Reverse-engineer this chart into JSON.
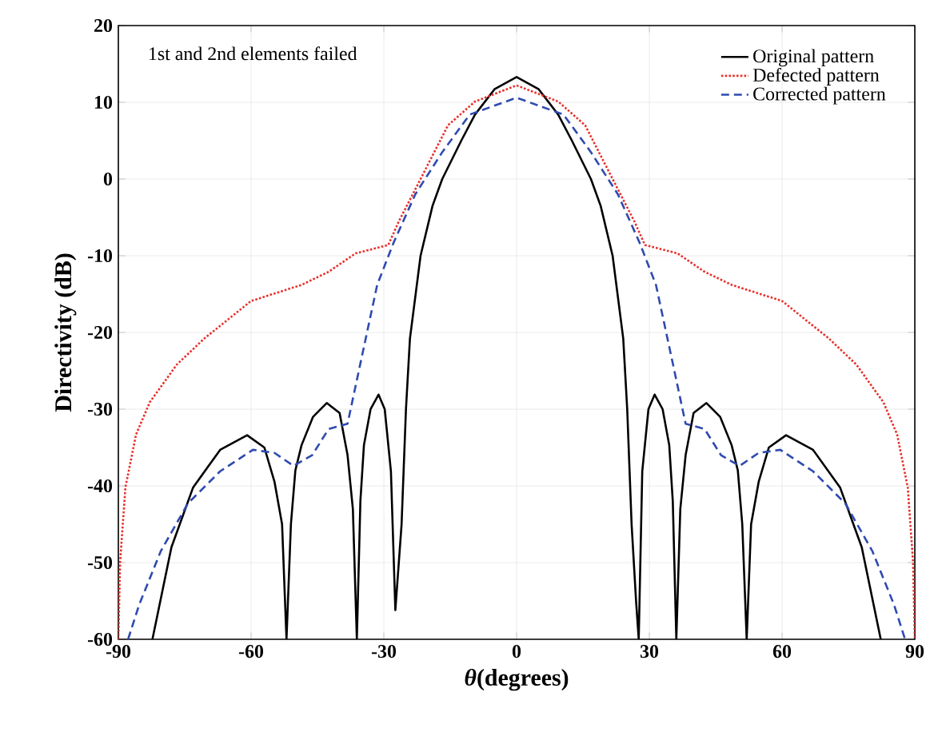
{
  "chart_data": {
    "type": "line",
    "xlabel": "*θ*(degrees)",
    "ylabel": "Directivity (dB)",
    "annotations": [
      "1st and 2nd elements failed"
    ],
    "xlim": [
      -90,
      90
    ],
    "xticks": [
      -90,
      -60,
      -30,
      0,
      30,
      60,
      90
    ],
    "ylim": [
      -60,
      20
    ],
    "yticks": [
      -60,
      -50,
      -40,
      -30,
      -20,
      -10,
      0,
      10,
      20
    ],
    "grid": true,
    "legend": "top right",
    "marker": "none",
    "series": [
      {
        "name": "Original pattern",
        "color": "#000000",
        "line_style": "solid",
        "x": [
          -82.3,
          -78,
          -73.1,
          -67,
          -60.9,
          -57,
          -54.7,
          -53,
          -52,
          -51,
          -50,
          -48.6,
          -46,
          -42.9,
          -40,
          -38.2,
          -37,
          -36.1,
          -35.3,
          -34.5,
          -33,
          -31.2,
          -29.8,
          -28.4,
          -27.4,
          -26.0,
          -25,
          -24.1,
          -21.7,
          -19,
          -16.8,
          -12.5,
          -9.4,
          -5,
          0,
          5,
          9.4,
          12.5,
          16.8,
          19,
          21.7,
          24.1,
          25,
          26.0,
          27,
          27.6,
          28.4,
          29.8,
          31.2,
          33,
          34.5,
          35.3,
          36.1,
          37,
          38.2,
          40,
          42.9,
          46,
          48.6,
          50,
          51,
          52,
          53,
          54.7,
          57,
          60.9,
          67,
          73.1,
          78,
          82.3
        ],
        "values": [
          -60,
          -48,
          -40.2,
          -35.3,
          -33.4,
          -35,
          -39.5,
          -45,
          -60,
          -45,
          -38,
          -34.7,
          -31,
          -29.2,
          -30.5,
          -36,
          -43,
          -60,
          -42,
          -34.7,
          -30,
          -28.1,
          -30,
          -38.1,
          -56.2,
          -45.1,
          -30,
          -20.8,
          -10,
          -3.5,
          0,
          5,
          8.4,
          11.7,
          13.3,
          11.7,
          8.4,
          5,
          0,
          -3.5,
          -10,
          -20.8,
          -30,
          -45.1,
          -55,
          -60,
          -38.1,
          -30,
          -28.1,
          -30,
          -34.7,
          -42,
          -60,
          -43,
          -36,
          -30.5,
          -29.2,
          -31,
          -34.7,
          -38,
          -45,
          -60,
          -45,
          -39.5,
          -35,
          -33.4,
          -35.3,
          -40.2,
          -48,
          -60
        ]
      },
      {
        "name": "Defected pattern",
        "color": "#e8302a",
        "line_style": "dotted",
        "x": [
          -90,
          -89.6,
          -88.4,
          -86,
          -82.9,
          -76.8,
          -70.6,
          -60,
          -48.6,
          -42.5,
          -36.4,
          -29,
          -26.6,
          -21.7,
          -15.5,
          -9.4,
          0,
          9.4,
          15.5,
          21.7,
          26.6,
          29,
          36.4,
          42.5,
          48.6,
          60,
          70.6,
          76.8,
          82.9,
          86,
          88.4,
          89.6,
          90
        ],
        "values": [
          -60,
          -49.9,
          -40.2,
          -33.3,
          -29.1,
          -24.2,
          -20.8,
          -15.9,
          -13.8,
          -12.1,
          -9.7,
          -8.6,
          -5.5,
          0,
          7,
          10.1,
          12.2,
          10.1,
          7,
          0,
          -5.5,
          -8.6,
          -9.7,
          -12.1,
          -13.8,
          -15.9,
          -20.8,
          -24.2,
          -29.1,
          -33.3,
          -40.2,
          -49.9,
          -60
        ]
      },
      {
        "name": "Corrected pattern",
        "color": "#2f4ab0",
        "line_style": "dashed",
        "x": [
          -87.8,
          -85.3,
          -80.4,
          -74.3,
          -67,
          -59.6,
          -54.7,
          -50.4,
          -46.2,
          -42.5,
          -38.2,
          -35.1,
          -31.5,
          -27.8,
          -22.9,
          -16.8,
          -10.6,
          0,
          10.6,
          16.8,
          22.9,
          27.8,
          31.5,
          35.1,
          38.2,
          42.5,
          46.2,
          50.4,
          54.7,
          59.6,
          67,
          74.3,
          80.4,
          85.3,
          87.8
        ],
        "values": [
          -60,
          -55.5,
          -48.5,
          -42.3,
          -38.1,
          -35.3,
          -35.7,
          -37.4,
          -36,
          -32.6,
          -31.9,
          -23.5,
          -13.8,
          -8.3,
          -2,
          3.5,
          8.4,
          10.6,
          8.4,
          3.5,
          -2,
          -8.3,
          -13.8,
          -23.5,
          -31.9,
          -32.6,
          -36,
          -37.4,
          -35.7,
          -35.3,
          -38.1,
          -42.3,
          -48.5,
          -55.5,
          -60
        ]
      }
    ]
  }
}
